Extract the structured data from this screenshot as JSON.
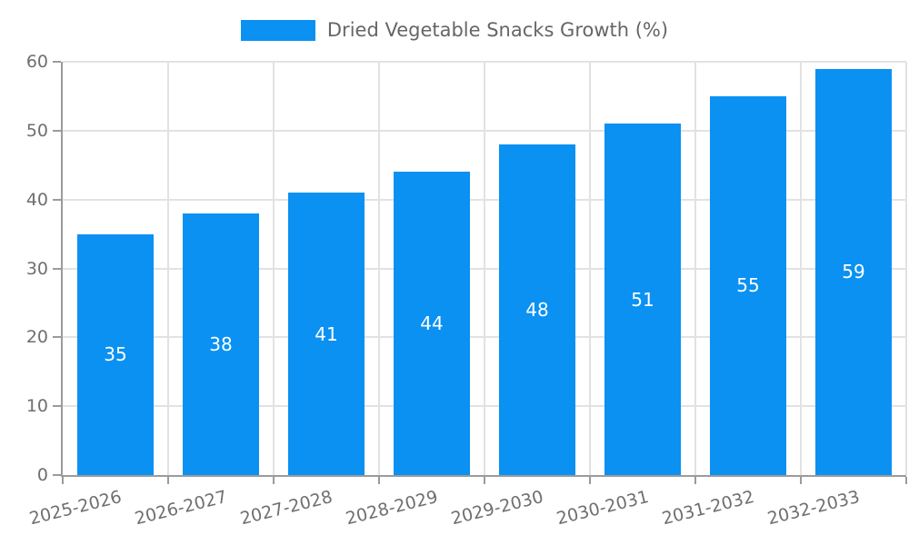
{
  "chart_data": {
    "type": "bar",
    "title": "",
    "legend_label": "Dried Vegetable Snacks Growth (%)",
    "legend_position": "top-center",
    "categories": [
      "2025-2026",
      "2026-2027",
      "2027-2028",
      "2028-2029",
      "2029-2030",
      "2030-2031",
      "2031-2032",
      "2032-2033"
    ],
    "values": [
      35,
      38,
      41,
      44,
      48,
      51,
      55,
      59
    ],
    "value_labels_visible": true,
    "xlabel": "",
    "ylabel": "",
    "ylim": [
      0,
      60
    ],
    "yticks": [
      0,
      10,
      20,
      30,
      40,
      50,
      60
    ],
    "grid": true,
    "x_label_rotation_deg": -14,
    "colors": {
      "bar": "#0a91f2",
      "value_text": "#ffffff",
      "grid": "#e2e2e2",
      "axis": "#9b9b9b",
      "tick_text": "#6f6f6f",
      "legend_text": "#666666",
      "background": "#ffffff"
    }
  }
}
